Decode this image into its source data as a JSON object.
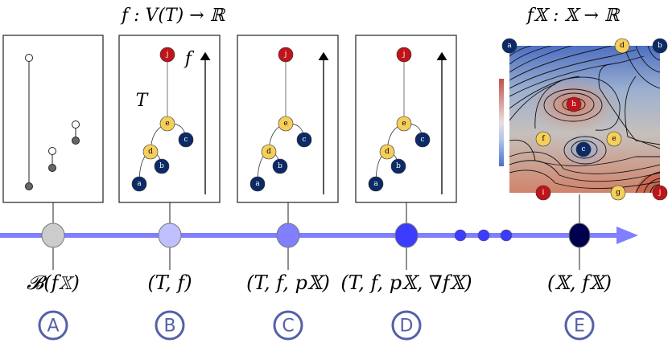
{
  "titles": {
    "tree_function": "f : V(T) → ℝ",
    "domain_function": "f𝕏 : 𝕏 → ℝ"
  },
  "tree_labels": {
    "tree": "T",
    "function": "f"
  },
  "nodes": {
    "tree": [
      "j",
      "e",
      "c",
      "d",
      "b",
      "a"
    ],
    "domain": [
      "a",
      "d",
      "b",
      "h",
      "f",
      "e",
      "c",
      "i",
      "g",
      "j"
    ]
  },
  "node_colors": {
    "max": "#c0141a",
    "saddle": "#f5cf5a",
    "min": "#0b2a66"
  },
  "timeline_colors": {
    "line": "#7f7fff",
    "A": "#cccccc",
    "B": "#c0c0ff",
    "C": "#8080ff",
    "D": "#3c3cff",
    "E": "#00004f"
  },
  "stages": [
    {
      "id": "A",
      "label": "𝓑(f𝕏)"
    },
    {
      "id": "B",
      "label": "(T, f)"
    },
    {
      "id": "C",
      "label": "(T, f, p𝕏)"
    },
    {
      "id": "D",
      "label": "(T, f, p𝕏, ∇f𝕏)"
    },
    {
      "id": "E",
      "label": "(𝕏, f𝕏)"
    }
  ]
}
